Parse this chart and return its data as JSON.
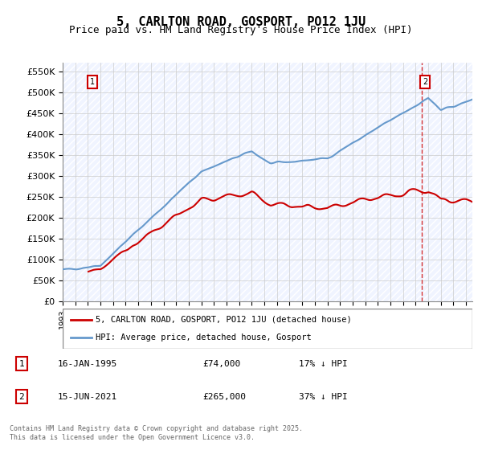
{
  "title": "5, CARLTON ROAD, GOSPORT, PO12 1JU",
  "subtitle": "Price paid vs. HM Land Registry's House Price Index (HPI)",
  "ylabel_ticks": [
    "£0",
    "£50K",
    "£100K",
    "£150K",
    "£200K",
    "£250K",
    "£300K",
    "£350K",
    "£400K",
    "£450K",
    "£500K",
    "£550K"
  ],
  "ytick_values": [
    0,
    50000,
    100000,
    150000,
    200000,
    250000,
    300000,
    350000,
    400000,
    450000,
    500000,
    550000
  ],
  "ylim": [
    0,
    570000
  ],
  "xlim_start": 1993.0,
  "xlim_end": 2025.5,
  "hpi_color": "#6699cc",
  "price_color": "#cc0000",
  "vline_color": "#cc0000",
  "grid_color": "#cccccc",
  "bg_color": "#f0f4ff",
  "point1_x": 1995.04,
  "point1_y": 74000,
  "point2_x": 2021.46,
  "point2_y": 265000,
  "annotation1": "1",
  "annotation2": "2",
  "legend_line1": "5, CARLTON ROAD, GOSPORT, PO12 1JU (detached house)",
  "legend_line2": "HPI: Average price, detached house, Gosport",
  "table_row1": [
    "1",
    "16-JAN-1995",
    "£74,000",
    "17% ↓ HPI"
  ],
  "table_row2": [
    "2",
    "15-JUN-2021",
    "£265,000",
    "37% ↓ HPI"
  ],
  "footer": "Contains HM Land Registry data © Crown copyright and database right 2025.\nThis data is licensed under the Open Government Licence v3.0.",
  "title_fontsize": 11,
  "subtitle_fontsize": 9,
  "tick_fontsize": 8
}
